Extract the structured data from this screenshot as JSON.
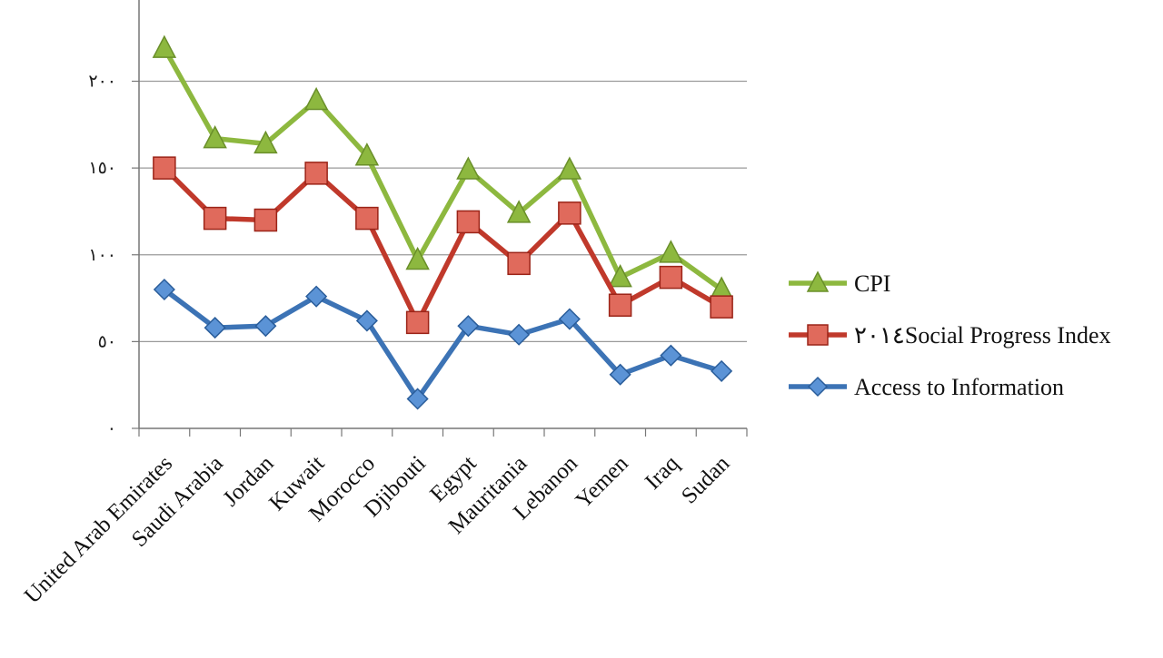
{
  "chart_data": {
    "type": "line",
    "title": "",
    "xlabel": "",
    "ylabel": "",
    "ylim": [
      0,
      250
    ],
    "yticks": [
      0,
      50,
      100,
      150,
      200
    ],
    "ytick_labels": [
      "٠",
      "٥٠",
      "١٠٠",
      "١٥٠",
      "٢٠٠"
    ],
    "grid": true,
    "legend_position": "right",
    "categories": [
      "United Arab Emirates",
      "Saudi Arabia",
      "Jordan",
      "Kuwait",
      "Morocco",
      "Djibouti",
      "Egypt",
      "Mauritania",
      "Lebanon",
      "Yemen",
      "Iraq",
      "Sudan"
    ],
    "series": [
      {
        "name": "CPI",
        "marker": "triangle",
        "color": "#8DB83F",
        "values": [
          219,
          167,
          164,
          189,
          157,
          97,
          149,
          124,
          149,
          87,
          101,
          80
        ]
      },
      {
        "name": "٢٠١٤Social Progress Index",
        "marker": "square",
        "color": "#C0392B",
        "values": [
          150,
          121,
          120,
          147,
          121,
          61,
          119,
          95,
          124,
          71,
          87,
          70
        ]
      },
      {
        "name": "Access to Information",
        "marker": "diamond",
        "color": "#3C73B5",
        "values": [
          80,
          58,
          59,
          76,
          62,
          17,
          59,
          54,
          63,
          31,
          42,
          33
        ]
      }
    ]
  }
}
